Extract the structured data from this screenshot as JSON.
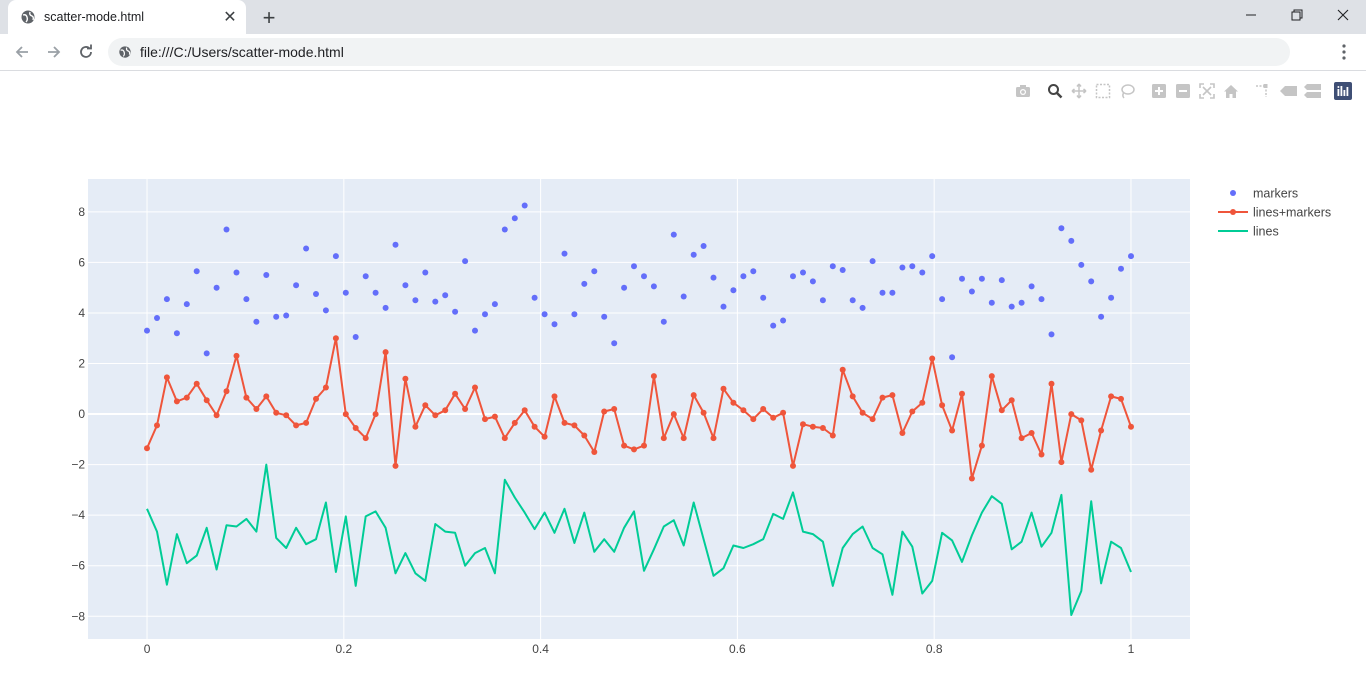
{
  "browser": {
    "tab_title": "scatter-mode.html",
    "tab_close_glyph": "✕",
    "new_tab_glyph": "+",
    "url": "file:///C:/Users/scatter-mode.html",
    "window_controls": {
      "minimize": "—",
      "maximize": "❐",
      "close": "✕"
    },
    "icons": [
      "globe-icon",
      "back-arrow-icon",
      "forward-arrow-icon",
      "reload-icon",
      "kebab-menu-icon"
    ]
  },
  "modebar": {
    "buttons": [
      "camera-icon",
      "zoom-icon",
      "pan-icon",
      "box-select-icon",
      "lasso-select-icon",
      "zoom-in-icon",
      "zoom-out-icon",
      "autoscale-icon",
      "reset-axes-icon",
      "spike-lines-icon",
      "hover-closest-icon",
      "hover-compare-icon",
      "plotly-logo-icon"
    ]
  },
  "colors": {
    "plot_bg": "#e5ecf6",
    "grid": "#ffffff",
    "markers": "#636efa",
    "lines_markers": "#ef553b",
    "lines": "#00cc96",
    "modebar_icon": "#c5c5c5",
    "modebar_active": "#444444"
  },
  "chart_data": {
    "type": "scatter",
    "title": "",
    "xlabel": "",
    "ylabel": "",
    "xlim": [
      -0.06,
      1.06
    ],
    "ylim": [
      -8.9,
      9.3
    ],
    "xticks": [
      0,
      0.2,
      0.4,
      0.6,
      0.8,
      1
    ],
    "xtick_labels": [
      "0",
      "0.2",
      "0.4",
      "0.6",
      "0.8",
      "1"
    ],
    "yticks": [
      -8,
      -6,
      -4,
      -2,
      0,
      2,
      4,
      6,
      8
    ],
    "ytick_labels": [
      "−8",
      "−6",
      "−4",
      "−2",
      "0",
      "2",
      "4",
      "6",
      "8"
    ],
    "grid": true,
    "legend_position": "top-right outside",
    "x": [
      0,
      0.010101,
      0.020202,
      0.030303,
      0.040404,
      0.050505,
      0.060606,
      0.070707,
      0.080808,
      0.090909,
      0.10101,
      0.111111,
      0.121212,
      0.131313,
      0.141414,
      0.151515,
      0.161616,
      0.171717,
      0.181818,
      0.191919,
      0.20202,
      0.212121,
      0.222222,
      0.232323,
      0.242424,
      0.252525,
      0.262626,
      0.272727,
      0.282828,
      0.292929,
      0.30303,
      0.313131,
      0.323232,
      0.333333,
      0.343434,
      0.353535,
      0.363636,
      0.373737,
      0.383838,
      0.393939,
      0.40404,
      0.414141,
      0.424242,
      0.434343,
      0.444444,
      0.454545,
      0.464646,
      0.474747,
      0.484848,
      0.494949,
      0.505051,
      0.515152,
      0.525253,
      0.535354,
      0.545455,
      0.555556,
      0.565657,
      0.575758,
      0.585859,
      0.59596,
      0.606061,
      0.616162,
      0.626263,
      0.636364,
      0.646465,
      0.656566,
      0.666667,
      0.676768,
      0.686869,
      0.69697,
      0.707071,
      0.717172,
      0.727273,
      0.737374,
      0.747475,
      0.757576,
      0.767677,
      0.777778,
      0.787879,
      0.79798,
      0.808081,
      0.818182,
      0.828283,
      0.838384,
      0.848485,
      0.858586,
      0.868687,
      0.878788,
      0.888889,
      0.89899,
      0.909091,
      0.919192,
      0.929293,
      0.939394,
      0.949495,
      0.959596,
      0.969697,
      0.979798,
      0.989899,
      1
    ],
    "series": [
      {
        "name": "markers",
        "mode": "markers",
        "y": [
          3.3,
          3.8,
          4.55,
          3.2,
          4.35,
          5.65,
          2.4,
          5,
          7.3,
          5.6,
          4.55,
          3.65,
          5.5,
          3.85,
          3.9,
          5.1,
          6.55,
          4.75,
          4.1,
          6.25,
          4.8,
          3.05,
          5.45,
          4.8,
          4.2,
          6.7,
          5.1,
          4.5,
          5.6,
          4.45,
          4.7,
          4.05,
          6.05,
          3.3,
          3.95,
          4.35,
          7.3,
          7.75,
          8.25,
          4.6,
          3.95,
          3.55,
          6.35,
          3.95,
          5.15,
          5.65,
          3.85,
          2.8,
          5,
          5.85,
          5.45,
          5.05,
          3.65,
          7.1,
          4.65,
          6.3,
          6.65,
          5.4,
          4.25,
          4.9,
          5.45,
          5.65,
          4.6,
          3.5,
          3.7,
          5.45,
          5.6,
          5.25,
          4.5,
          5.85,
          5.7,
          4.5,
          4.2,
          6.05,
          4.8,
          4.8,
          5.8,
          5.85,
          5.6,
          6.25,
          4.55,
          2.25,
          5.35,
          4.85,
          5.35,
          4.4,
          5.3,
          4.25,
          4.4,
          5.05,
          4.55,
          3.15,
          7.35,
          6.85,
          5.9,
          5.25,
          3.85,
          4.6,
          5.75,
          6.25
        ]
      },
      {
        "name": "lines+markers",
        "mode": "lines+markers",
        "y": [
          -1.35,
          -0.45,
          1.45,
          0.5,
          0.65,
          1.2,
          0.55,
          -0.05,
          0.9,
          2.3,
          0.65,
          0.2,
          0.7,
          0.05,
          -0.05,
          -0.45,
          -0.35,
          0.6,
          1.05,
          3,
          0,
          -0.55,
          -0.95,
          0,
          2.45,
          -2.05,
          1.4,
          -0.5,
          0.35,
          -0.05,
          0.15,
          0.8,
          0.2,
          1.05,
          -0.2,
          -0.1,
          -0.95,
          -0.35,
          0.15,
          -0.5,
          -0.9,
          0.7,
          -0.35,
          -0.45,
          -0.85,
          -1.5,
          0.1,
          0.2,
          -1.25,
          -1.4,
          -1.25,
          1.5,
          -0.95,
          0,
          -0.95,
          0.75,
          0.05,
          -0.95,
          1,
          0.45,
          0.15,
          -0.2,
          0.2,
          -0.15,
          0.05,
          -2.05,
          -0.4,
          -0.5,
          -0.55,
          -0.85,
          1.75,
          0.7,
          0.05,
          -0.2,
          0.65,
          0.75,
          -0.75,
          0.1,
          0.45,
          2.2,
          0.35,
          -0.65,
          0.8,
          -2.55,
          -1.25,
          1.5,
          0.15,
          0.55,
          -0.95,
          -0.75,
          -1.6,
          1.2,
          -1.9,
          0,
          -0.25,
          -2.2,
          -0.65,
          0.7,
          0.6,
          -0.5
        ]
      },
      {
        "name": "lines",
        "mode": "lines",
        "y": [
          -3.75,
          -4.65,
          -6.75,
          -4.75,
          -5.9,
          -5.6,
          -4.5,
          -6.15,
          -4.4,
          -4.45,
          -4.15,
          -4.65,
          -2,
          -4.9,
          -5.3,
          -4.5,
          -5.15,
          -4.95,
          -3.5,
          -6.25,
          -4.05,
          -6.8,
          -4.05,
          -3.85,
          -4.5,
          -6.3,
          -5.5,
          -6.3,
          -6.6,
          -4.35,
          -4.65,
          -4.7,
          -6,
          -5.5,
          -5.3,
          -6.3,
          -2.6,
          -3.3,
          -3.9,
          -4.55,
          -3.9,
          -4.7,
          -3.75,
          -5.1,
          -3.9,
          -5.45,
          -4.95,
          -5.45,
          -4.5,
          -3.85,
          -6.2,
          -5.35,
          -4.45,
          -4.2,
          -5.2,
          -3.5,
          -4.95,
          -6.4,
          -6.1,
          -5.2,
          -5.3,
          -5.15,
          -4.95,
          -3.95,
          -4.15,
          -3.1,
          -4.65,
          -4.75,
          -5.05,
          -6.8,
          -5.3,
          -4.75,
          -4.45,
          -5.3,
          -5.55,
          -7.15,
          -4.65,
          -5.25,
          -7.1,
          -6.6,
          -4.7,
          -5,
          -5.85,
          -4.8,
          -3.9,
          -3.25,
          -3.55,
          -5.35,
          -5.05,
          -3.9,
          -5.25,
          -4.7,
          -3.2,
          -7.95,
          -7,
          -3.45,
          -6.7,
          -5.05,
          -5.3,
          -6.25
        ]
      }
    ]
  }
}
